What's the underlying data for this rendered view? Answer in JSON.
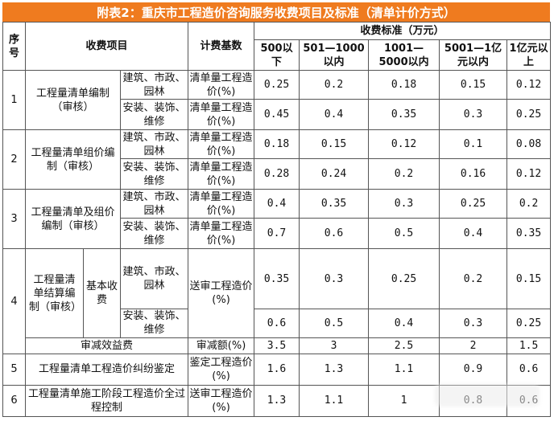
{
  "title": "附表2：重庆市工程造价咨询服务收费项目及标准（清单计价方式）",
  "header": {
    "seq": "序号",
    "item": "收费项目",
    "basis": "计费基数",
    "standard": "收费标准（万元）",
    "tiers": [
      "500以下",
      "501—1000以内",
      "1001—5000以内",
      "5001—1亿元以内",
      "1亿元以上"
    ]
  },
  "rows": [
    {
      "seq": "1",
      "item": "工程量清单编制（审核）",
      "subs": [
        {
          "type": "建筑、市政、园林",
          "basis": "清单量工程造价(%)",
          "values": [
            "0.25",
            "0.2",
            "0.18",
            "0.15",
            "0.12"
          ]
        },
        {
          "type": "安装、装饰、维修",
          "basis": "清单量工程造价(%)",
          "values": [
            "0.45",
            "0.4",
            "0.35",
            "0.3",
            "0.25"
          ]
        }
      ]
    },
    {
      "seq": "2",
      "item": "工程量清单组价编制（审核）",
      "subs": [
        {
          "type": "建筑、市政、园林",
          "basis": "清单量工程造价(%)",
          "values": [
            "0.18",
            "0.15",
            "0.12",
            "0.1",
            "0.08"
          ]
        },
        {
          "type": "安装、装饰、维修",
          "basis": "清单量工程造价(%)",
          "values": [
            "0.28",
            "0.24",
            "0.2",
            "0.16",
            "0.12"
          ]
        }
      ]
    },
    {
      "seq": "3",
      "item": "工程量清单及组价编制（审核）",
      "subs": [
        {
          "type": "建筑、市政、园林",
          "basis": "清单量工程造价(%)",
          "values": [
            "0.4",
            "0.35",
            "0.3",
            "0.25",
            "0.2"
          ]
        },
        {
          "type": "安装、装饰、维修",
          "basis": "清单量工程造价(%)",
          "values": [
            "0.7",
            "0.6",
            "0.5",
            "0.4",
            "0.35"
          ]
        }
      ]
    },
    {
      "seq": "4",
      "item": "工程量清单结算编制（审核）",
      "sub_item": "基本收费",
      "basis": "送审工程造价(%)",
      "subs": [
        {
          "type": "建筑、市政、园林",
          "values": [
            "0.35",
            "0.3",
            "0.25",
            "0.2",
            "0.15"
          ]
        },
        {
          "type": "安装、装饰、维修",
          "values": [
            "0.6",
            "0.5",
            "0.4",
            "0.3",
            "0.25"
          ]
        }
      ],
      "extra": {
        "label": "审减效益费",
        "basis": "审减额(%)",
        "values": [
          "3.5",
          "3",
          "2.5",
          "2",
          "1.5"
        ]
      }
    },
    {
      "seq": "5",
      "item": "工程量清单工程造价纠纷鉴定",
      "basis": "鉴定工程造价(%)",
      "values": [
        "1.6",
        "1.3",
        "1.1",
        "0.9",
        "0.6"
      ]
    },
    {
      "seq": "6",
      "item": "工程量清单施工阶段工程造价全过程控制",
      "basis": "送审工程造价(%)",
      "values": [
        "1.3",
        "1.1",
        "1",
        "0.8",
        "0.6"
      ]
    }
  ]
}
